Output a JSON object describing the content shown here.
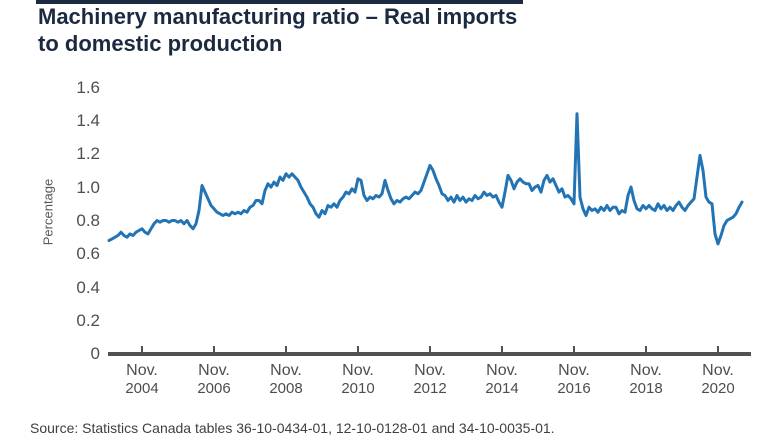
{
  "page": {
    "title_line1": "Machinery manufacturing ratio – Real imports",
    "title_line2": "to domestic production",
    "source_note": "Source: Statistics Canada tables 36-10-0434-01, 12-10-0128-01 and 34-10-0035-01."
  },
  "chart_data": {
    "type": "line",
    "title": "Machinery manufacturing ratio – Real imports to domestic production",
    "xlabel": "",
    "ylabel": "Percentage",
    "ylim": [
      0,
      1.6
    ],
    "grid": false,
    "legend_position": "none",
    "line_color": "#2274B5",
    "y_tick_labels": [
      "1.6",
      "1.4",
      "1.2",
      "1.0",
      "0.8",
      "0.6",
      "0.4",
      "0.2",
      "0"
    ],
    "x_tick_month": "Nov.",
    "x_tick_years": [
      "2004",
      "2006",
      "2008",
      "2010",
      "2012",
      "2014",
      "2016",
      "2018",
      "2020"
    ],
    "series": [
      {
        "name": "Real imports to domestic production",
        "start": "2003-12",
        "frequency": "monthly",
        "values": [
          0.68,
          0.69,
          0.7,
          0.71,
          0.73,
          0.71,
          0.7,
          0.72,
          0.71,
          0.73,
          0.74,
          0.75,
          0.73,
          0.72,
          0.75,
          0.78,
          0.8,
          0.79,
          0.8,
          0.8,
          0.79,
          0.8,
          0.8,
          0.79,
          0.8,
          0.78,
          0.8,
          0.77,
          0.75,
          0.78,
          0.86,
          1.01,
          0.97,
          0.93,
          0.89,
          0.87,
          0.85,
          0.84,
          0.83,
          0.84,
          0.83,
          0.85,
          0.84,
          0.85,
          0.84,
          0.86,
          0.85,
          0.88,
          0.89,
          0.92,
          0.92,
          0.9,
          0.98,
          1.02,
          1.0,
          1.03,
          1.01,
          1.06,
          1.04,
          1.08,
          1.06,
          1.08,
          1.06,
          1.04,
          1.0,
          0.97,
          0.94,
          0.9,
          0.88,
          0.84,
          0.82,
          0.86,
          0.84,
          0.89,
          0.88,
          0.9,
          0.88,
          0.92,
          0.94,
          0.97,
          0.96,
          0.99,
          0.97,
          1.05,
          1.04,
          0.95,
          0.92,
          0.94,
          0.93,
          0.95,
          0.94,
          0.96,
          1.04,
          0.98,
          0.93,
          0.9,
          0.92,
          0.91,
          0.93,
          0.94,
          0.93,
          0.95,
          0.97,
          0.96,
          0.98,
          1.03,
          1.08,
          1.13,
          1.1,
          1.05,
          1.01,
          0.96,
          0.95,
          0.92,
          0.94,
          0.91,
          0.95,
          0.92,
          0.94,
          0.91,
          0.93,
          0.92,
          0.95,
          0.93,
          0.94,
          0.97,
          0.95,
          0.96,
          0.94,
          0.95,
          0.91,
          0.88,
          0.97,
          1.07,
          1.04,
          0.99,
          1.03,
          1.05,
          1.03,
          1.02,
          1.02,
          0.98,
          1.0,
          1.01,
          0.97,
          1.04,
          1.07,
          1.03,
          1.05,
          1.01,
          0.97,
          0.99,
          0.94,
          0.95,
          0.93,
          0.9,
          1.44,
          0.94,
          0.87,
          0.83,
          0.88,
          0.86,
          0.87,
          0.85,
          0.88,
          0.86,
          0.89,
          0.86,
          0.88,
          0.88,
          0.84,
          0.86,
          0.85,
          0.95,
          1.0,
          0.92,
          0.87,
          0.86,
          0.89,
          0.87,
          0.89,
          0.87,
          0.86,
          0.9,
          0.87,
          0.89,
          0.86,
          0.88,
          0.86,
          0.89,
          0.91,
          0.88,
          0.86,
          0.89,
          0.91,
          0.93,
          1.06,
          1.19,
          1.1,
          0.94,
          0.91,
          0.9,
          0.72,
          0.66,
          0.71,
          0.77,
          0.8,
          0.81,
          0.82,
          0.84,
          0.88,
          0.91
        ]
      }
    ]
  }
}
